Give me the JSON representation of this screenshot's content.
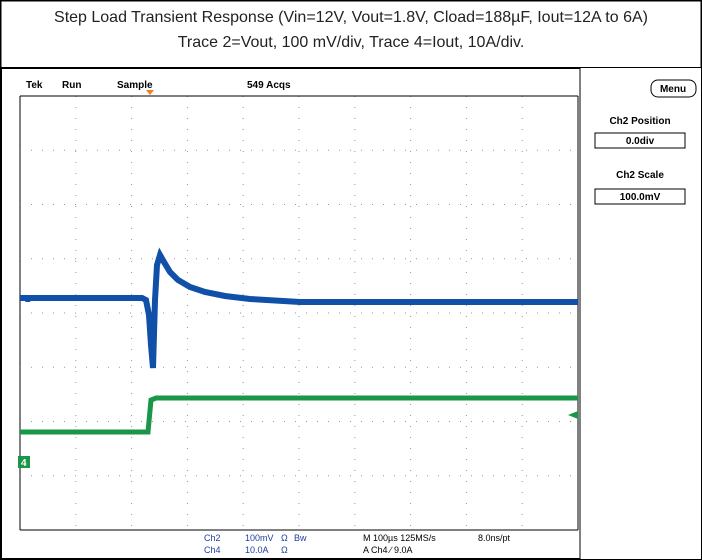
{
  "title": {
    "line1": "Step Load Transient Response (Vin=12V, Vout=1.8V, Cload=188µF, Iout=12A to 6A)",
    "line2": "Trace 2=Vout, 100 mV/div, Trace 4=Iout, 10A/div."
  },
  "scope": {
    "header": [
      "Tek",
      "Run",
      "Sample",
      "549 Acqs"
    ],
    "menu": "Menu",
    "side": [
      {
        "label": "Ch2 Position",
        "value": "0.0div"
      },
      {
        "label": "Ch2 Scale",
        "value": "100.0mV"
      }
    ],
    "markers": [
      "2",
      "4"
    ],
    "footer": {
      "ch2": [
        "Ch2",
        "100mV",
        "Ω",
        "Bw"
      ],
      "ch4": [
        "Ch4",
        "10.0A",
        "Ω"
      ],
      "timebase": [
        "M 100µs 125MS/s",
        "8.0ns/pt"
      ],
      "trigger": "A Ch4 ∕ 9.0A"
    }
  }
}
